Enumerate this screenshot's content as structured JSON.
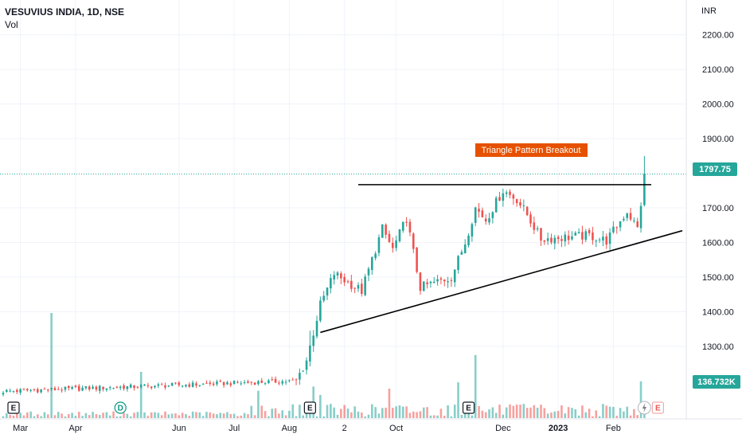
{
  "chart_data": {
    "type": "candlestick",
    "title": "VESUVIUS INDIA, 1D, NSE",
    "subtitle": "Vol",
    "currency": "INR",
    "y_ticks": [
      "2200.00",
      "2100.00",
      "2000.00",
      "1900.00",
      "1700.00",
      "1600.00",
      "1500.00",
      "1400.00",
      "1300.00"
    ],
    "ylim": [
      1150,
      2250
    ],
    "x_ticks": [
      {
        "label": "Mar",
        "index": 5,
        "bold": false
      },
      {
        "label": "Apr",
        "index": 21,
        "bold": false
      },
      {
        "label": "Jun",
        "index": 51,
        "bold": false
      },
      {
        "label": "Jul",
        "index": 67,
        "bold": false
      },
      {
        "label": "Aug",
        "index": 83,
        "bold": false
      },
      {
        "label": "2",
        "index": 99,
        "bold": false
      },
      {
        "label": "Oct",
        "index": 114,
        "bold": false
      },
      {
        "label": "Dec",
        "index": 145,
        "bold": false
      },
      {
        "label": "2023",
        "index": 161,
        "bold": true
      },
      {
        "label": "Feb",
        "index": 177,
        "bold": false
      }
    ],
    "last_price": {
      "value": 1797.75,
      "label": "1797.75",
      "color": "#26a69a"
    },
    "last_volume": {
      "label": "136.732K",
      "color": "#26a69a"
    },
    "annotation": {
      "text": "Triangle Pattern Breakout",
      "color": "#e65100"
    },
    "event_markers": [
      {
        "letter": "E",
        "index": 3
      },
      {
        "letter": "D",
        "index": 34
      },
      {
        "letter": "E",
        "index": 89
      },
      {
        "letter": "E",
        "index": 135
      }
    ],
    "trend_lines": [
      {
        "name": "resistance",
        "from": {
          "index": 103,
          "price": 1767
        },
        "to": {
          "index": 188,
          "price": 1767
        }
      },
      {
        "name": "support",
        "from": {
          "index": 92,
          "price": 1340
        },
        "to": {
          "index": 197,
          "price": 1634
        }
      }
    ],
    "colors": {
      "up": "#26a69a",
      "down": "#ef5350",
      "grid": "#f0f3fa",
      "text": "#131722"
    },
    "segments": [
      {
        "from": 0,
        "to": 85,
        "start": 1170,
        "end": 1200
      },
      {
        "from": 85,
        "to": 88,
        "start": 1200,
        "end": 1260
      },
      {
        "from": 88,
        "to": 92,
        "start": 1260,
        "end": 1420
      },
      {
        "from": 92,
        "to": 96,
        "start": 1420,
        "end": 1510
      },
      {
        "from": 96,
        "to": 104,
        "start": 1510,
        "end": 1460
      },
      {
        "from": 104,
        "to": 110,
        "start": 1460,
        "end": 1640
      },
      {
        "from": 110,
        "to": 113,
        "start": 1640,
        "end": 1580
      },
      {
        "from": 113,
        "to": 117,
        "start": 1580,
        "end": 1670
      },
      {
        "from": 117,
        "to": 121,
        "start": 1670,
        "end": 1470
      },
      {
        "from": 121,
        "to": 130,
        "start": 1470,
        "end": 1500
      },
      {
        "from": 130,
        "to": 134,
        "start": 1500,
        "end": 1600
      },
      {
        "from": 134,
        "to": 137,
        "start": 1600,
        "end": 1700
      },
      {
        "from": 137,
        "to": 140,
        "start": 1700,
        "end": 1665
      },
      {
        "from": 140,
        "to": 145,
        "start": 1665,
        "end": 1750
      },
      {
        "from": 145,
        "to": 149,
        "start": 1750,
        "end": 1725
      },
      {
        "from": 149,
        "to": 152,
        "start": 1725,
        "end": 1680
      },
      {
        "from": 152,
        "to": 156,
        "start": 1680,
        "end": 1610
      },
      {
        "from": 156,
        "to": 170,
        "start": 1610,
        "end": 1620
      },
      {
        "from": 170,
        "to": 175,
        "start": 1620,
        "end": 1605
      },
      {
        "from": 175,
        "to": 181,
        "start": 1605,
        "end": 1690
      },
      {
        "from": 181,
        "to": 184,
        "start": 1690,
        "end": 1640
      },
      {
        "from": 184,
        "to": 186,
        "start": 1640,
        "end": 1785
      }
    ],
    "volume_spikes": [
      {
        "index": 14,
        "value": 1.0
      },
      {
        "index": 40,
        "value": 0.44
      },
      {
        "index": 74,
        "value": 0.26
      },
      {
        "index": 90,
        "value": 0.3
      },
      {
        "index": 92,
        "value": 0.22
      },
      {
        "index": 112,
        "value": 0.28
      },
      {
        "index": 132,
        "value": 0.34
      },
      {
        "index": 137,
        "value": 0.6
      },
      {
        "index": 185,
        "value": 0.35
      }
    ]
  }
}
